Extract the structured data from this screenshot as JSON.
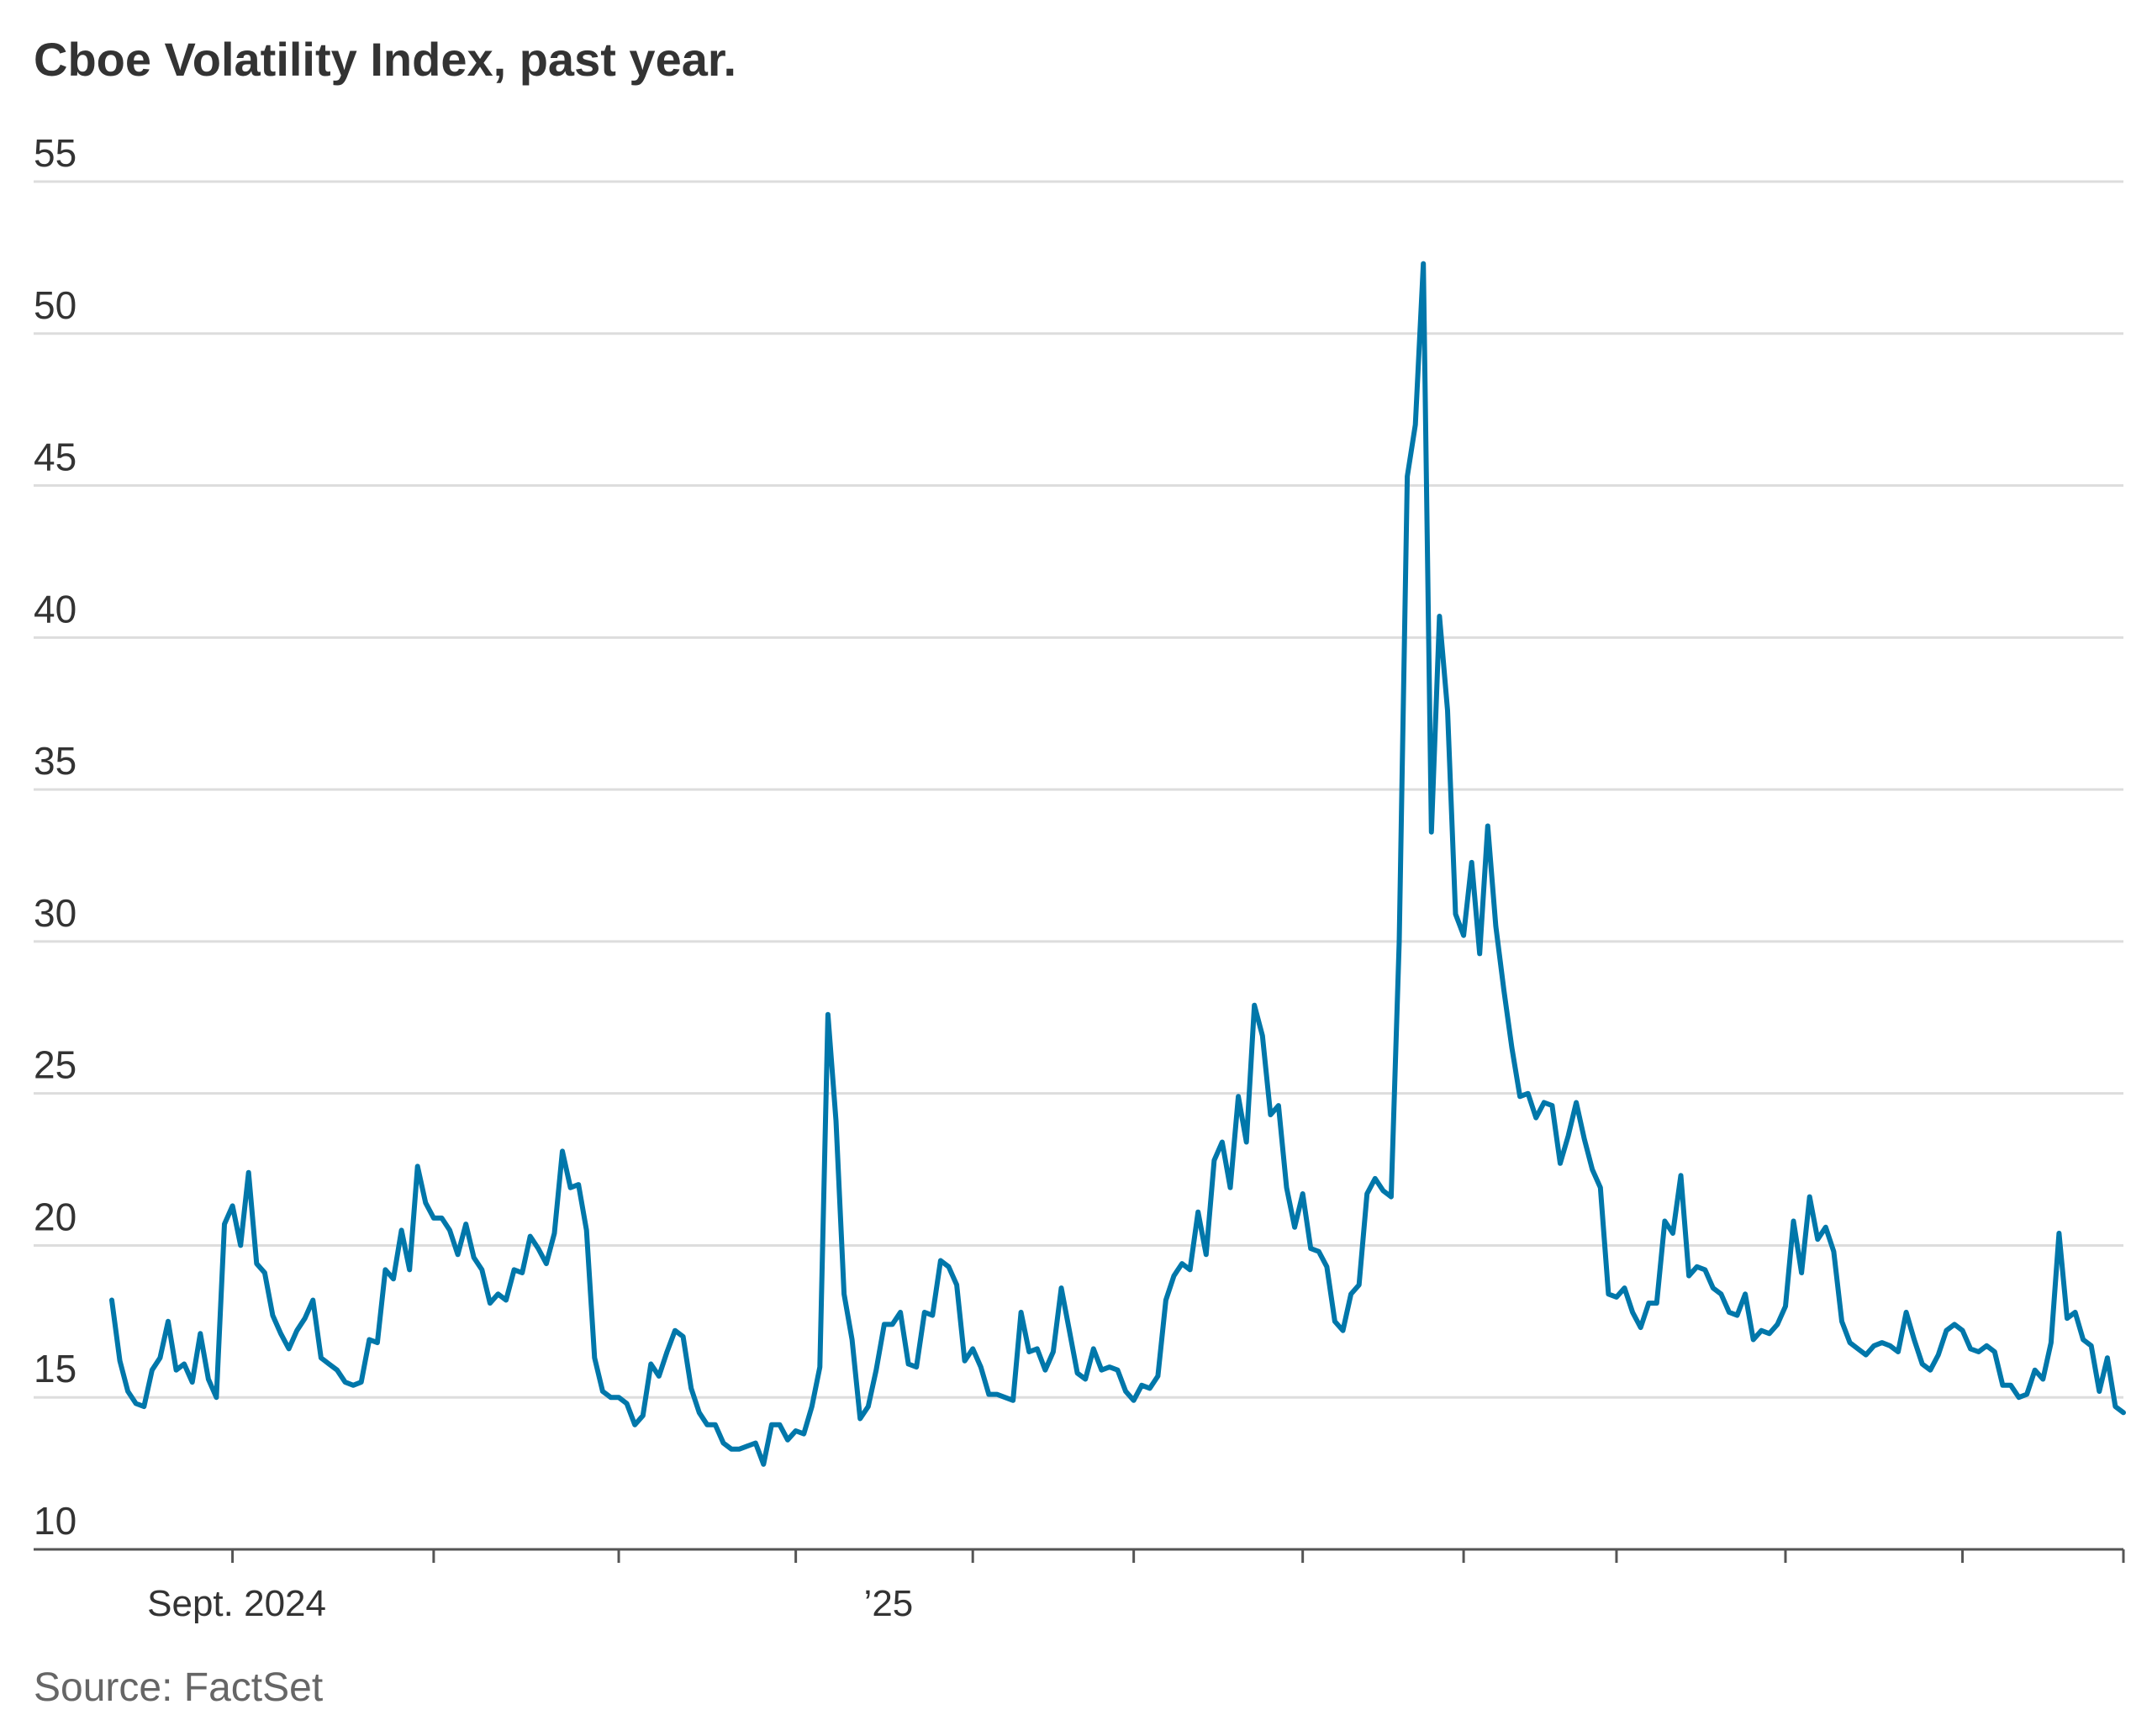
{
  "chart_data": {
    "type": "line",
    "title": "Cboe Volatility Index, past year.",
    "source": "Source: FactSet",
    "xlabel": "",
    "ylabel": "",
    "ylim": [
      10,
      55
    ],
    "y_ticks": [
      10,
      15,
      20,
      25,
      30,
      35,
      40,
      45,
      50,
      55
    ],
    "x_tick_labels": [
      {
        "label": "Sept. 2024",
        "index": 15
      },
      {
        "label": "’25",
        "index": 96
      }
    ],
    "x_tick_mark_indices": [
      15,
      40,
      63,
      85,
      107,
      127,
      148,
      168,
      187,
      208,
      230,
      250,
      271,
      293,
      316,
      337,
      353
    ],
    "grid": true,
    "legend": "none",
    "series": [
      {
        "name": "Cboe Volatility Index",
        "color": "#0077aa",
        "values": [
          18.2,
          16.2,
          15.2,
          14.8,
          14.7,
          15.9,
          16.3,
          17.5,
          15.9,
          16.1,
          15.5,
          17.1,
          15.6,
          15.0,
          20.7,
          21.3,
          20.0,
          22.4,
          19.4,
          19.1,
          17.7,
          17.1,
          16.6,
          17.2,
          17.6,
          18.2,
          16.3,
          16.1,
          15.9,
          15.5,
          15.4,
          15.5,
          16.9,
          16.8,
          19.2,
          18.9,
          20.5,
          19.2,
          22.6,
          21.4,
          20.9,
          20.9,
          20.5,
          19.7,
          20.7,
          19.6,
          19.2,
          18.1,
          18.4,
          18.2,
          19.2,
          19.1,
          20.3,
          19.9,
          19.4,
          20.4,
          23.1,
          21.9,
          22.0,
          20.5,
          16.3,
          15.2,
          15.0,
          15.0,
          14.8,
          14.1,
          14.4,
          16.1,
          15.7,
          16.5,
          17.2,
          17.0,
          15.3,
          14.5,
          14.1,
          14.1,
          13.5,
          13.3,
          13.3,
          13.4,
          13.5,
          12.8,
          14.1,
          14.1,
          13.6,
          13.9,
          13.8,
          14.7,
          16.0,
          27.6,
          24.1,
          18.4,
          16.9,
          14.3,
          14.7,
          15.9,
          17.4,
          17.4,
          17.8,
          16.1,
          16.0,
          17.8,
          17.7,
          19.5,
          19.3,
          18.7,
          16.2,
          16.6,
          16.0,
          15.1,
          15.1,
          15.0,
          14.9,
          17.8,
          16.5,
          16.6,
          15.9,
          16.5,
          18.6,
          17.2,
          15.8,
          15.6,
          16.6,
          15.9,
          16.0,
          15.9,
          15.2,
          14.9,
          15.4,
          15.3,
          15.7,
          18.2,
          19.0,
          19.4,
          19.2,
          21.1,
          19.7,
          22.8,
          23.4,
          21.9,
          24.9,
          23.4,
          27.9,
          26.9,
          24.3,
          24.6,
          21.9,
          20.6,
          21.7,
          19.9,
          19.8,
          19.3,
          17.5,
          17.2,
          18.4,
          18.7,
          21.7,
          22.2,
          21.8,
          21.6,
          30.0,
          45.3,
          47.0,
          52.3,
          33.6,
          40.7,
          37.6,
          30.9,
          30.2,
          32.6,
          29.6,
          33.8,
          30.5,
          28.4,
          26.5,
          24.9,
          25.0,
          24.2,
          24.7,
          24.6,
          22.7,
          23.6,
          24.7,
          23.5,
          22.5,
          21.9,
          18.4,
          18.3,
          18.6,
          17.8,
          17.3,
          18.1,
          18.1,
          20.8,
          20.4,
          22.3,
          19.0,
          19.3,
          19.2,
          18.6,
          18.4,
          17.8,
          17.7,
          18.4,
          16.9,
          17.2,
          17.1,
          17.4,
          18.0,
          20.8,
          19.1,
          21.6,
          20.2,
          20.6,
          19.8,
          17.5,
          16.8,
          16.6,
          16.4,
          16.7,
          16.8,
          16.7,
          16.5,
          17.8,
          16.9,
          16.1,
          15.9,
          16.4,
          17.2,
          17.4,
          17.2,
          16.6,
          16.5,
          16.7,
          16.5,
          15.4,
          15.4,
          15.0,
          15.1,
          15.9,
          15.6,
          16.8,
          20.4,
          17.6,
          17.8,
          16.9,
          16.7,
          15.2,
          16.3,
          14.7,
          14.5
        ]
      }
    ]
  }
}
